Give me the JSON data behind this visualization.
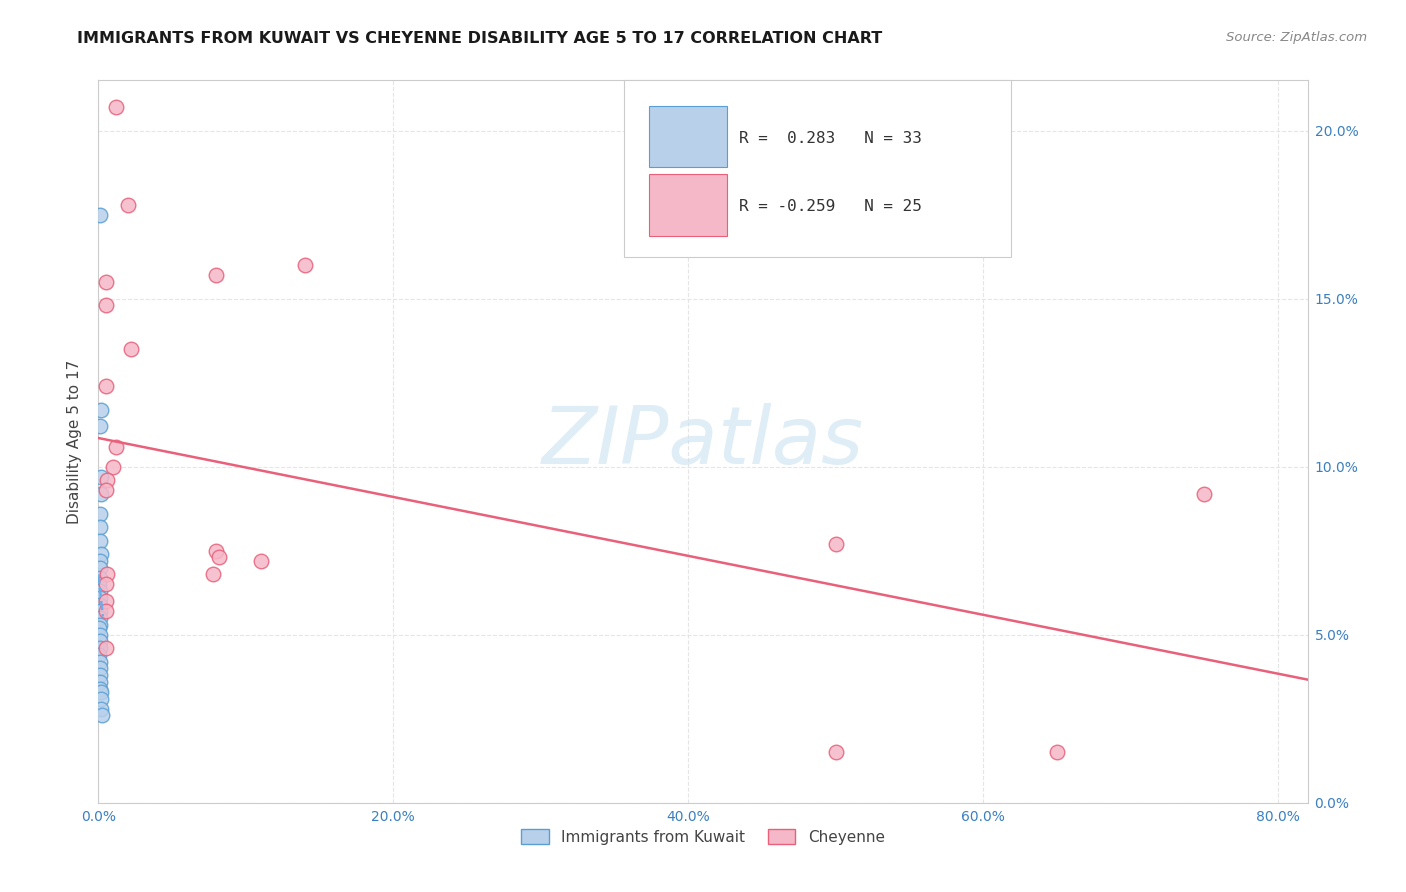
{
  "title": "IMMIGRANTS FROM KUWAIT VS CHEYENNE DISABILITY AGE 5 TO 17 CORRELATION CHART",
  "source": "Source: ZipAtlas.com",
  "ylabel": "Disability Age 5 to 17",
  "legend_label1": "Immigrants from Kuwait",
  "legend_label2": "Cheyenne",
  "r1": 0.283,
  "n1": 33,
  "r2": -0.259,
  "n2": 25,
  "blue_fill": "#b8d0ea",
  "blue_edge": "#5a9fd4",
  "pink_fill": "#f5b8c8",
  "pink_edge": "#e8607a",
  "blue_line_color": "#6aaee8",
  "pink_line_color": "#e8607a",
  "xlim": [
    0.0,
    0.82
  ],
  "ylim": [
    0.0,
    0.215
  ],
  "xtick_vals": [
    0.0,
    0.2,
    0.4,
    0.6,
    0.8
  ],
  "xtick_labels": [
    "0.0%",
    "20.0%",
    "40.0%",
    "60.0%",
    "80.0%"
  ],
  "ytick_vals": [
    0.0,
    0.05,
    0.1,
    0.15,
    0.2
  ],
  "ytick_labels": [
    "0.0%",
    "5.0%",
    "10.0%",
    "15.0%",
    "20.0%"
  ],
  "scatter_blue": [
    [
      0.0008,
      0.175
    ],
    [
      0.0015,
      0.117
    ],
    [
      0.0013,
      0.112
    ],
    [
      0.002,
      0.097
    ],
    [
      0.0018,
      0.092
    ],
    [
      0.001,
      0.086
    ],
    [
      0.0008,
      0.082
    ],
    [
      0.0012,
      0.078
    ],
    [
      0.0015,
      0.074
    ],
    [
      0.001,
      0.072
    ],
    [
      0.0014,
      0.07
    ],
    [
      0.001,
      0.067
    ],
    [
      0.0006,
      0.065
    ],
    [
      0.001,
      0.063
    ],
    [
      0.0008,
      0.061
    ],
    [
      0.0009,
      0.059
    ],
    [
      0.001,
      0.057
    ],
    [
      0.0008,
      0.055
    ],
    [
      0.001,
      0.053
    ],
    [
      0.0006,
      0.052
    ],
    [
      0.0008,
      0.05
    ],
    [
      0.001,
      0.048
    ],
    [
      0.0009,
      0.046
    ],
    [
      0.0007,
      0.044
    ],
    [
      0.001,
      0.042
    ],
    [
      0.0008,
      0.04
    ],
    [
      0.0008,
      0.038
    ],
    [
      0.001,
      0.036
    ],
    [
      0.0012,
      0.034
    ],
    [
      0.0015,
      0.033
    ],
    [
      0.002,
      0.031
    ],
    [
      0.0018,
      0.028
    ],
    [
      0.0025,
      0.026
    ]
  ],
  "scatter_pink": [
    [
      0.012,
      0.207
    ],
    [
      0.02,
      0.178
    ],
    [
      0.005,
      0.155
    ],
    [
      0.005,
      0.148
    ],
    [
      0.022,
      0.135
    ],
    [
      0.08,
      0.157
    ],
    [
      0.14,
      0.16
    ],
    [
      0.005,
      0.124
    ],
    [
      0.012,
      0.106
    ],
    [
      0.01,
      0.1
    ],
    [
      0.006,
      0.096
    ],
    [
      0.005,
      0.093
    ],
    [
      0.08,
      0.075
    ],
    [
      0.082,
      0.073
    ],
    [
      0.11,
      0.072
    ],
    [
      0.078,
      0.068
    ],
    [
      0.006,
      0.068
    ],
    [
      0.005,
      0.065
    ],
    [
      0.005,
      0.06
    ],
    [
      0.005,
      0.057
    ],
    [
      0.005,
      0.046
    ],
    [
      0.75,
      0.092
    ],
    [
      0.5,
      0.077
    ],
    [
      0.5,
      0.015
    ],
    [
      0.65,
      0.015
    ]
  ],
  "watermark": "ZIPatlas",
  "bg_color": "#ffffff",
  "grid_color": "#e5e5e5",
  "title_fontsize": 11.5,
  "source_fontsize": 9.5,
  "tick_fontsize": 10,
  "ylabel_fontsize": 11
}
